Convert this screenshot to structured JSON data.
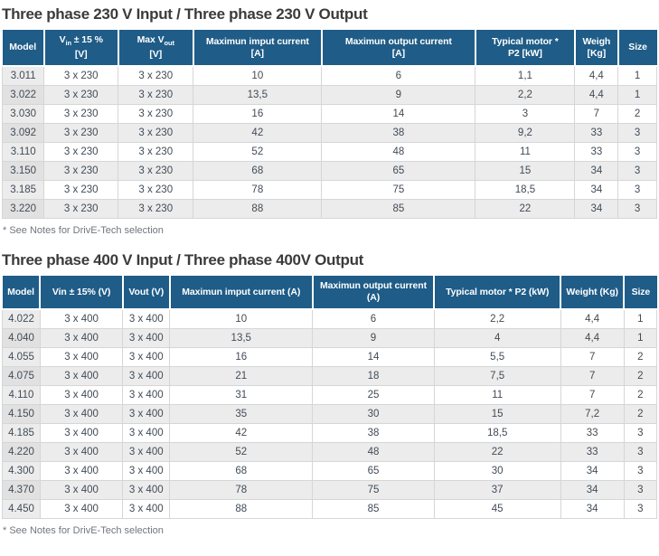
{
  "colors": {
    "header_bg": "#1F5C87",
    "header_text": "#ffffff",
    "title_text": "#3b3b3b",
    "body_text": "#414b56",
    "alt_row_bg": "#ececec",
    "border": "#d6d6d6"
  },
  "tables": [
    {
      "title": "Three phase 230 V Input / Three phase 230 V Output",
      "footnote": "* See Notes for DrivE-Tech selection",
      "columns": [
        {
          "key": "model",
          "label": "Model",
          "width": "6.4%"
        },
        {
          "key": "vin",
          "label": "V~in~ ± 15 %\n[V]",
          "width": "11.3%"
        },
        {
          "key": "vout",
          "label": "Max V~out~\n[V]",
          "width": "11.5%"
        },
        {
          "key": "in_a",
          "label": "Maximun imput current\n[A]",
          "width": "19.6%"
        },
        {
          "key": "out_a",
          "label": "Maximun output current\n[A]",
          "width": "23.5%"
        },
        {
          "key": "p2",
          "label": "Typical motor *\nP2 [kW]",
          "width": "15.2%"
        },
        {
          "key": "weight",
          "label": "Weigh\n[Kg]",
          "width": "6.6%"
        },
        {
          "key": "size",
          "label": "Size",
          "width": "5.9%"
        }
      ],
      "rows": [
        [
          "3.011",
          "3 x 230",
          "3 x 230",
          "10",
          "6",
          "1,1",
          "4,4",
          "1"
        ],
        [
          "3.022",
          "3 x 230",
          "3 x 230",
          "13,5",
          "9",
          "2,2",
          "4,4",
          "1"
        ],
        [
          "3.030",
          "3 x 230",
          "3 x 230",
          "16",
          "14",
          "3",
          "7",
          "2"
        ],
        [
          "3.092",
          "3 x 230",
          "3 x 230",
          "42",
          "38",
          "9,2",
          "33",
          "3"
        ],
        [
          "3.110",
          "3 x 230",
          "3 x 230",
          "52",
          "48",
          "11",
          "33",
          "3"
        ],
        [
          "3.150",
          "3 x 230",
          "3 x 230",
          "68",
          "65",
          "15",
          "34",
          "3"
        ],
        [
          "3.185",
          "3 x 230",
          "3 x 230",
          "78",
          "75",
          "18,5",
          "34",
          "3"
        ],
        [
          "3.220",
          "3 x 230",
          "3 x 230",
          "88",
          "85",
          "22",
          "34",
          "3"
        ]
      ]
    },
    {
      "title": "Three phase 400 V Input / Three phase 400V Output",
      "footnote": "* See Notes for DrivE-Tech selection",
      "columns": [
        {
          "key": "model",
          "label": "Model",
          "width": "5.8%"
        },
        {
          "key": "vin",
          "label": "Vin ± 15% (V)",
          "width": "12.6%"
        },
        {
          "key": "vout",
          "label": "Vout (V)",
          "width": "7.2%"
        },
        {
          "key": "in_a",
          "label": "Maximun imput current (A)",
          "width": "21.8%"
        },
        {
          "key": "out_a",
          "label": "Maximun output current (A)",
          "width": "18.6%"
        },
        {
          "key": "p2",
          "label": "Typical motor * P2 (kW)",
          "width": "19.3%"
        },
        {
          "key": "weight",
          "label": "Weight (Kg)",
          "width": "9.7%"
        },
        {
          "key": "size",
          "label": "Size",
          "width": "5.0%"
        }
      ],
      "rows": [
        [
          "4.022",
          "3 x 400",
          "3 x 400",
          "10",
          "6",
          "2,2",
          "4,4",
          "1"
        ],
        [
          "4.040",
          "3 x 400",
          "3 x 400",
          "13,5",
          "9",
          "4",
          "4,4",
          "1"
        ],
        [
          "4.055",
          "3 x 400",
          "3 x 400",
          "16",
          "14",
          "5,5",
          "7",
          "2"
        ],
        [
          "4.075",
          "3 x 400",
          "3 x 400",
          "21",
          "18",
          "7,5",
          "7",
          "2"
        ],
        [
          "4.110",
          "3 x 400",
          "3 x 400",
          "31",
          "25",
          "11",
          "7",
          "2"
        ],
        [
          "4.150",
          "3 x 400",
          "3 x 400",
          "35",
          "30",
          "15",
          "7,2",
          "2"
        ],
        [
          "4.185",
          "3 x 400",
          "3 x 400",
          "42",
          "38",
          "18,5",
          "33",
          "3"
        ],
        [
          "4.220",
          "3 x 400",
          "3 x 400",
          "52",
          "48",
          "22",
          "33",
          "3"
        ],
        [
          "4.300",
          "3 x 400",
          "3 x 400",
          "68",
          "65",
          "30",
          "34",
          "3"
        ],
        [
          "4.370",
          "3 x 400",
          "3 x 400",
          "78",
          "75",
          "37",
          "34",
          "3"
        ],
        [
          "4.450",
          "3 x 400",
          "3 x 400",
          "88",
          "85",
          "45",
          "34",
          "3"
        ]
      ]
    }
  ]
}
